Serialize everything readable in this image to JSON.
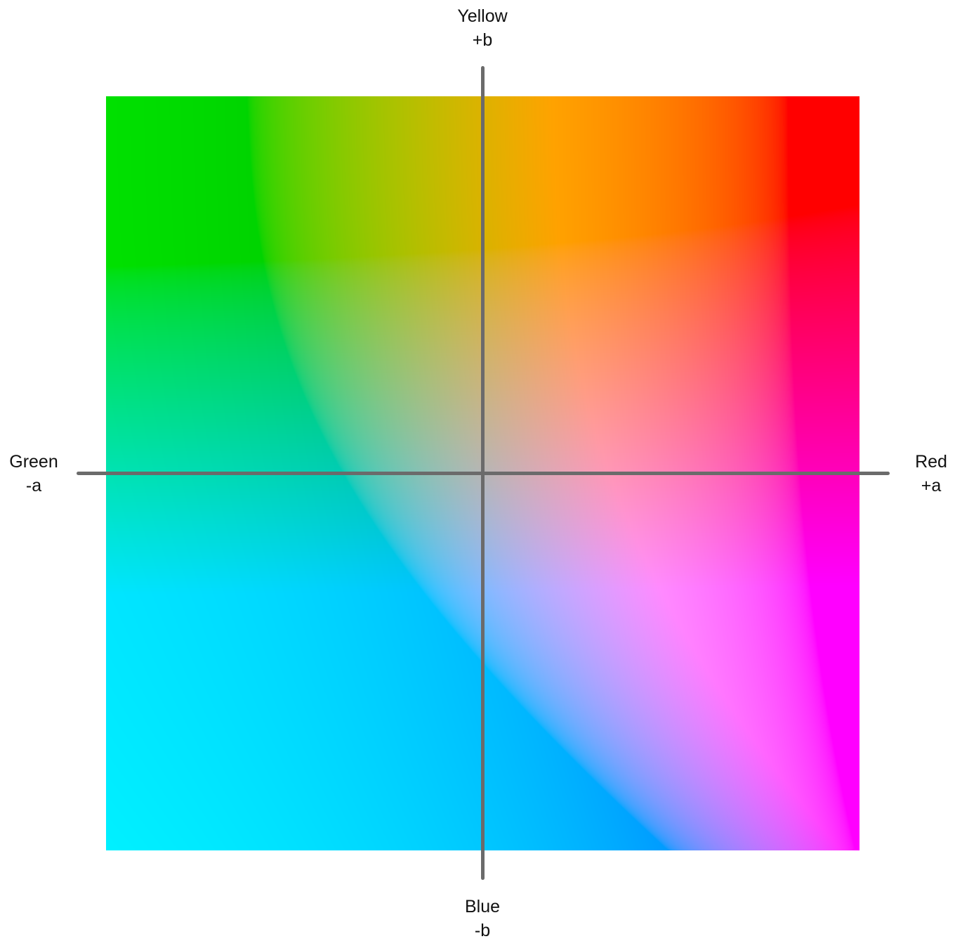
{
  "labels": {
    "top": {
      "name": "Yellow",
      "axis": "+b"
    },
    "bottom": {
      "name": "Blue",
      "axis": "-b"
    },
    "left": {
      "name": "Green",
      "axis": "-a"
    },
    "right": {
      "name": "Red",
      "axis": "+a"
    }
  },
  "colors": {
    "axis_line": "#6b6b6b",
    "green": "#00ee00",
    "yellow": "#ffff00",
    "red": "#ff2200",
    "magenta": "#ff3cf0",
    "blue": "#0022e0",
    "center_neutral": "#b4b4b4"
  }
}
